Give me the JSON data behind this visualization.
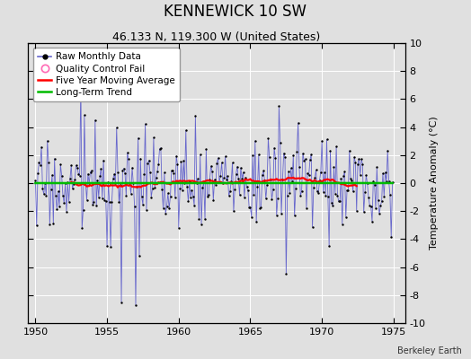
{
  "title": "KENNEWICK 10 SW",
  "subtitle": "46.133 N, 119.300 W (United States)",
  "ylabel": "Temperature Anomaly (°C)",
  "watermark": "Berkeley Earth",
  "xlim": [
    1949.5,
    1975.8
  ],
  "ylim": [
    -10,
    10
  ],
  "xticks": [
    1950,
    1955,
    1960,
    1965,
    1970,
    1975
  ],
  "yticks": [
    -10,
    -8,
    -6,
    -4,
    -2,
    0,
    2,
    4,
    6,
    8,
    10
  ],
  "bg_color": "#e0e0e0",
  "plot_bg_color": "#e0e0e0",
  "grid_color": "#ffffff",
  "raw_color": "#6666cc",
  "dot_color": "#000000",
  "ma_color": "#ff0000",
  "trend_color": "#00bb00",
  "qc_color": "#ff69b4",
  "legend_labels": [
    "Raw Monthly Data",
    "Quality Control Fail",
    "Five Year Moving Average",
    "Long-Term Trend"
  ],
  "title_fontsize": 12,
  "subtitle_fontsize": 9,
  "tick_fontsize": 8,
  "ylabel_fontsize": 8,
  "legend_fontsize": 7.5,
  "watermark_fontsize": 7
}
